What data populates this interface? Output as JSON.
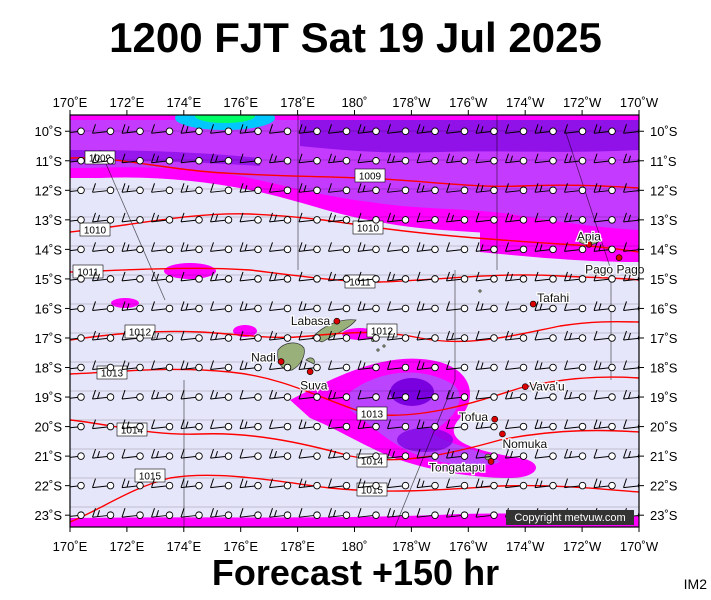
{
  "title": "1200 FJT Sat 19 Jul 2025",
  "footer": "Forecast +150 hr",
  "image_code": "IM2",
  "copyright": "Copyright metvuw.com",
  "colors": {
    "background": "#e6e6fa",
    "isobar": "#ff0000",
    "magenta": "#ff00ff",
    "violet": "#bb44ff",
    "deep_purple": "#7a00e0",
    "land": "#9ab07a",
    "wind_barb": "#000000"
  },
  "lon_labels": [
    "170˚E",
    "172˚E",
    "174˚E",
    "176˚E",
    "178˚E",
    "180˚",
    "178˚W",
    "176˚W",
    "174˚W",
    "172˚W",
    "170˚W"
  ],
  "lat_labels": [
    "10˚S",
    "11˚S",
    "12˚S",
    "13˚S",
    "14˚S",
    "15˚S",
    "16˚S",
    "17˚S",
    "18˚S",
    "19˚S",
    "20˚S",
    "21˚S",
    "22˚S",
    "23˚S"
  ],
  "isobars": [
    {
      "label": "1009"
    },
    {
      "label": "1009"
    },
    {
      "label": "1010"
    },
    {
      "label": "1010"
    },
    {
      "label": "1011"
    },
    {
      "label": "1011"
    },
    {
      "label": "1012"
    },
    {
      "label": "1012"
    },
    {
      "label": "1013"
    },
    {
      "label": "1013"
    },
    {
      "label": "1014"
    },
    {
      "label": "1014"
    },
    {
      "label": "1015"
    },
    {
      "label": "1015"
    }
  ],
  "places": [
    {
      "name": "Apia",
      "lat": -13.83,
      "lon": -171.76
    },
    {
      "name": "Pago Pago",
      "lat": -14.28,
      "lon": -170.7
    },
    {
      "name": "Tafahi",
      "lat": -15.85,
      "lon": -173.72
    },
    {
      "name": "Labasa",
      "lat": -16.43,
      "lon": 179.38
    },
    {
      "name": "Nadi",
      "lat": -17.8,
      "lon": 177.42
    },
    {
      "name": "Suva",
      "lat": -18.14,
      "lon": 178.44
    },
    {
      "name": "Vava'u",
      "lat": -18.65,
      "lon": -174.0
    },
    {
      "name": "Tofua",
      "lat": -19.75,
      "lon": -175.07
    },
    {
      "name": "Nomuka",
      "lat": -20.25,
      "lon": -174.8
    },
    {
      "name": "Tongatapu",
      "lat": -21.18,
      "lon": -175.2
    }
  ]
}
